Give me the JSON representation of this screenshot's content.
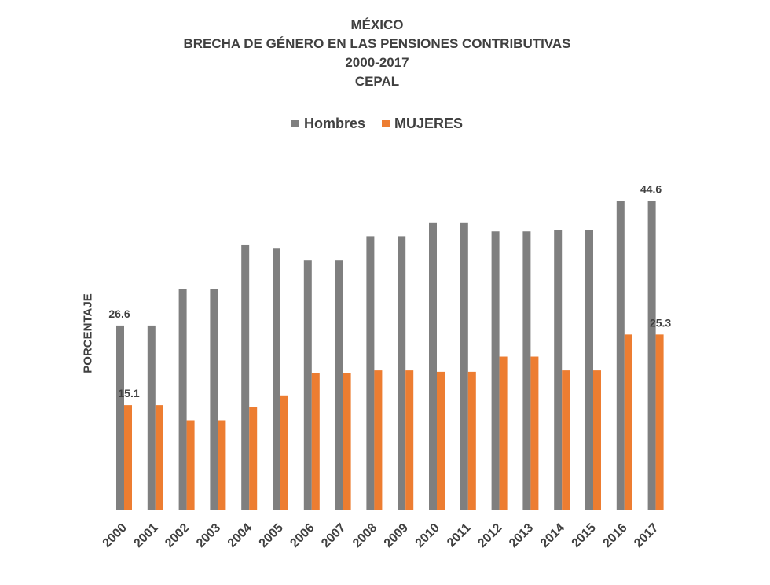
{
  "chart_data": {
    "type": "bar",
    "title": [
      "MÉXICO",
      "BRECHA DE GÉNERO EN LAS PENSIONES CONTRIBUTIVAS",
      "2000-2017",
      "CEPAL"
    ],
    "ylabel": "PORCENTAJE",
    "xlabel": "",
    "categories": [
      "2000",
      "2001",
      "2002",
      "2003",
      "2004",
      "2005",
      "2006",
      "2007",
      "2008",
      "2009",
      "2010",
      "2011",
      "2012",
      "2013",
      "2014",
      "2015",
      "2016",
      "2017"
    ],
    "series": [
      {
        "name": "Hombres",
        "color": "#7f7f7f",
        "values": [
          26.6,
          26.6,
          31.9,
          31.9,
          38.3,
          37.7,
          36.0,
          36.0,
          39.5,
          39.5,
          41.5,
          41.5,
          40.2,
          40.2,
          40.4,
          40.4,
          44.6,
          44.6
        ]
      },
      {
        "name": "MUJERES",
        "color": "#ed7d31",
        "values": [
          15.1,
          15.1,
          12.9,
          12.9,
          14.8,
          16.5,
          19.7,
          19.7,
          20.1,
          20.1,
          19.9,
          19.9,
          22.1,
          22.1,
          20.1,
          20.1,
          25.3,
          25.3
        ]
      }
    ],
    "data_labels": [
      {
        "series": 0,
        "index": 0,
        "text": "26.6"
      },
      {
        "series": 1,
        "index": 0,
        "text": "15.1"
      },
      {
        "series": 0,
        "index": 17,
        "text": "44.6"
      },
      {
        "series": 1,
        "index": 17,
        "text": "25.3"
      }
    ],
    "ylim": [
      0,
      50
    ],
    "legend_position": "top-center",
    "grid": false
  }
}
